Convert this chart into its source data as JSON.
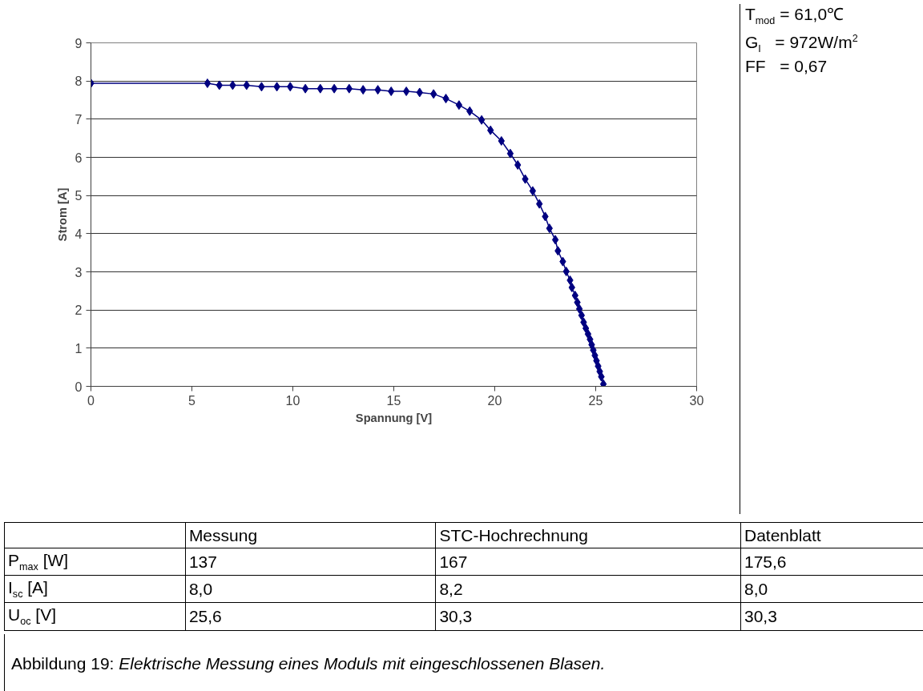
{
  "chart_data": {
    "type": "line",
    "xlabel": "Spannung [V]",
    "ylabel": "Strom [A]",
    "x": [
      0,
      5.77,
      6.36,
      7.02,
      7.71,
      8.45,
      9.21,
      9.87,
      10.62,
      11.36,
      12.05,
      12.79,
      13.48,
      14.21,
      14.87,
      15.62,
      16.28,
      16.97,
      17.58,
      18.23,
      18.76,
      19.35,
      19.79,
      20.33,
      20.77,
      21.14,
      21.51,
      21.88,
      22.21,
      22.5,
      22.71,
      23.0,
      23.13,
      23.37,
      23.54,
      23.73,
      23.82,
      23.98,
      24.09,
      24.19,
      24.3,
      24.4,
      24.51,
      24.62,
      24.72,
      24.8,
      24.88,
      24.96,
      25.04,
      25.12,
      25.2,
      25.28,
      25.38
    ],
    "series": [
      {
        "color": "#000080",
        "values": [
          7.94,
          7.94,
          7.89,
          7.89,
          7.89,
          7.85,
          7.85,
          7.85,
          7.8,
          7.8,
          7.8,
          7.8,
          7.77,
          7.77,
          7.73,
          7.73,
          7.7,
          7.66,
          7.54,
          7.37,
          7.21,
          6.98,
          6.71,
          6.43,
          6.1,
          5.8,
          5.43,
          5.12,
          4.78,
          4.45,
          4.14,
          3.84,
          3.55,
          3.27,
          3.01,
          2.78,
          2.59,
          2.38,
          2.2,
          2.03,
          1.86,
          1.68,
          1.52,
          1.37,
          1.23,
          1.09,
          0.95,
          0.81,
          0.67,
          0.53,
          0.39,
          0.25,
          0.06
        ]
      }
    ],
    "xlim": [
      0,
      30
    ],
    "ylim": [
      0,
      9
    ],
    "xticks": [
      0,
      5,
      10,
      15,
      20,
      25,
      30
    ],
    "yticks": [
      0,
      1,
      2,
      3,
      4,
      5,
      6,
      7,
      8,
      9
    ],
    "grid": "y",
    "marker": "diamond",
    "line_style": "solid",
    "annotations": [
      "T$_{mod}$ = 61,0℃",
      "G$_{I}$   = 972W/m$^{2}$",
      "FF   = 0,67",
      "Messung",
      "STC-Hochrechnung",
      "Datenblatt",
      "P$_{max}$ [W]",
      "137",
      "167",
      "175,6",
      "I$_{sc}$ [A]",
      "8,0",
      "8,2",
      "8,0",
      "U$_{oc}$ [V]",
      "25,6",
      "30,3",
      "30,3",
      "Abbildung 19: Elektrische Messung eines Moduls mit eingeschlossenen Blasen."
    ]
  }
}
